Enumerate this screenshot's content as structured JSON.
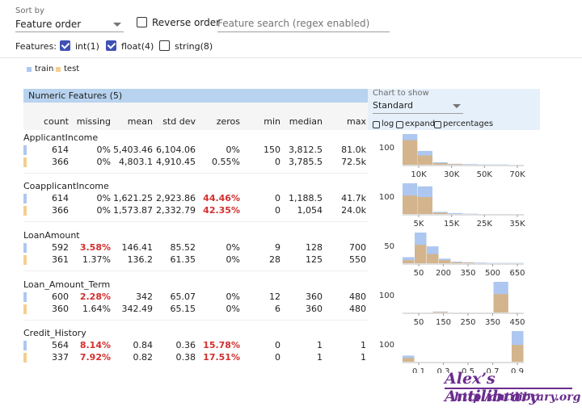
{
  "header": {
    "sort_label": "Sort by",
    "sort_value": "Feature order",
    "reverse_label": "Reverse order",
    "search_placeholder": "Feature search (regex enabled)",
    "features_label": "Features:",
    "feature_types": [
      {
        "label": "int(1)",
        "checked": true
      },
      {
        "label": "float(4)",
        "checked": true
      },
      {
        "label": "string(8)",
        "checked": false
      }
    ]
  },
  "legend": {
    "train": "train",
    "test": "test"
  },
  "colors": {
    "train": "#aec7f1",
    "test": "#f5cf8f",
    "accent": "#3f51b5",
    "red": "#d32f2f"
  },
  "table": {
    "title": "Numeric Features (5)",
    "columns": [
      "count",
      "missing",
      "mean",
      "std dev",
      "zeros",
      "min",
      "median",
      "max"
    ],
    "features": [
      {
        "name": "ApplicantIncome",
        "rows": [
          [
            "614",
            "0%",
            "5,403.46",
            "6,104.06",
            "0%",
            "150",
            "3,812.5",
            "81.0k"
          ],
          [
            "366",
            "0%",
            "4,803.1",
            "4,910.45",
            "0.55%",
            "0",
            "3,785.5",
            "72.5k"
          ]
        ]
      },
      {
        "name": "CoapplicantIncome",
        "rows": [
          [
            "614",
            "0%",
            "1,621.25",
            "2,923.86",
            "44.46%",
            "0",
            "1,188.5",
            "41.7k"
          ],
          [
            "366",
            "0%",
            "1,573.87",
            "2,332.79",
            "42.35%",
            "0",
            "1,054",
            "24.0k"
          ]
        ]
      },
      {
        "name": "LoanAmount",
        "rows": [
          [
            "592",
            "3.58%",
            "146.41",
            "85.52",
            "0%",
            "9",
            "128",
            "700"
          ],
          [
            "361",
            "1.37%",
            "136.2",
            "61.35",
            "0%",
            "28",
            "125",
            "550"
          ]
        ]
      },
      {
        "name": "Loan_Amount_Term",
        "rows": [
          [
            "600",
            "2.28%",
            "342",
            "65.07",
            "0%",
            "12",
            "360",
            "480"
          ],
          [
            "360",
            "1.64%",
            "342.49",
            "65.15",
            "0%",
            "6",
            "360",
            "480"
          ]
        ]
      },
      {
        "name": "Credit_History",
        "rows": [
          [
            "564",
            "8.14%",
            "0.84",
            "0.36",
            "15.78%",
            "0",
            "1",
            "1"
          ],
          [
            "337",
            "7.92%",
            "0.82",
            "0.38",
            "17.51%",
            "0",
            "1",
            "1"
          ]
        ]
      }
    ]
  },
  "chart_controls": {
    "label": "Chart to show",
    "value": "Standard",
    "options": [
      "log",
      "expand",
      "percentages"
    ]
  },
  "histograms": [
    {
      "ylabel": "100",
      "ticks": [
        "10K",
        "30K",
        "50K",
        "70K"
      ],
      "train": [
        1.0,
        0.45,
        0.08,
        0.03,
        0.02,
        0.01,
        0.01,
        0.0
      ],
      "test": [
        0.8,
        0.3,
        0.05,
        0.02,
        0.0,
        0.0,
        0.0,
        0.0
      ]
    },
    {
      "ylabel": "100",
      "ticks": [
        "5K",
        "15K",
        "25K",
        "35K"
      ],
      "train": [
        1.0,
        0.9,
        0.07,
        0.03,
        0.01,
        0.0,
        0.0,
        0.0
      ],
      "test": [
        0.6,
        0.55,
        0.04,
        0.0,
        0.0,
        0.0,
        0.0,
        0.0
      ]
    },
    {
      "ylabel": "50",
      "ticks": [
        "50",
        "200",
        "350",
        "500",
        "650"
      ],
      "train": [
        0.2,
        1.0,
        0.55,
        0.15,
        0.05,
        0.03,
        0.02,
        0.01,
        0.01,
        0.01
      ],
      "test": [
        0.1,
        0.6,
        0.3,
        0.1,
        0.03,
        0.02,
        0.0,
        0.0,
        0.0,
        0.0
      ]
    },
    {
      "ylabel": "100",
      "ticks": [
        "50",
        "150",
        "250",
        "350",
        "450"
      ],
      "train": [
        0.0,
        0.0,
        0.03,
        0.0,
        0.0,
        0.0,
        1.0,
        0.0
      ],
      "test": [
        0.0,
        0.0,
        0.02,
        0.0,
        0.0,
        0.0,
        0.6,
        0.0
      ]
    },
    {
      "ylabel": "100",
      "ticks": [
        "0.1",
        "0.3",
        "0.5",
        "0.7",
        "0.9"
      ],
      "train": [
        0.2,
        0.0,
        0.0,
        0.0,
        0.0,
        0.0,
        0.0,
        0.0,
        0.0,
        1.0
      ],
      "test": [
        0.12,
        0.0,
        0.0,
        0.0,
        0.0,
        0.0,
        0.0,
        0.0,
        0.0,
        0.55
      ]
    }
  ],
  "watermark": {
    "title": "Alex’s Antilibrary",
    "url": "http:/antilibrary.org"
  }
}
